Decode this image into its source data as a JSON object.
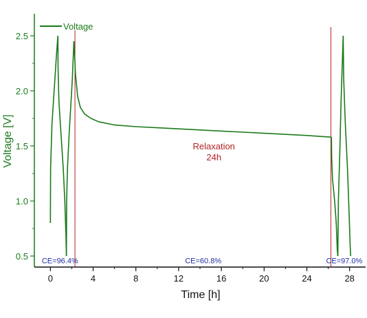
{
  "chart_data": {
    "type": "line",
    "xlabel": "Time [h]",
    "ylabel": "Voltage [V]",
    "xlim": [
      -1.5,
      29.5
    ],
    "ylim": [
      0.4,
      2.7
    ],
    "x_ticks": [
      0,
      4,
      8,
      12,
      16,
      20,
      24,
      28
    ],
    "y_ticks": [
      0.5,
      1.0,
      1.5,
      2.0,
      2.5
    ],
    "x_tick_labels": [
      "0",
      "4",
      "8",
      "12",
      "16",
      "20",
      "24",
      "28"
    ],
    "y_tick_labels": [
      "0.5",
      "1.0",
      "1.5",
      "2.0",
      "2.5"
    ],
    "legend": {
      "position": "top-left",
      "entries": [
        "Voltage"
      ]
    },
    "colors": {
      "series": "#1a7a1a",
      "axis_green": "#1a7a1a",
      "marker_red": "#b22222",
      "ce_blue": "#1f2fa0",
      "annotation_red": "#b22222"
    },
    "series": [
      {
        "name": "Voltage",
        "segments": [
          [
            [
              0,
              0.8
            ],
            [
              0.02,
              1.3
            ],
            [
              0.15,
              1.7
            ],
            [
              0.35,
              2.0
            ],
            [
              0.55,
              2.3
            ],
            [
              0.7,
              2.5
            ]
          ],
          [
            [
              0.7,
              2.5
            ],
            [
              0.72,
              2.2
            ],
            [
              0.8,
              1.9
            ],
            [
              1.0,
              1.6
            ],
            [
              1.2,
              1.3
            ],
            [
              1.35,
              1.0
            ],
            [
              1.45,
              0.7
            ],
            [
              1.5,
              0.5
            ]
          ],
          [
            [
              1.5,
              0.5
            ],
            [
              1.52,
              1.0
            ],
            [
              1.6,
              1.3
            ],
            [
              1.75,
              1.6
            ],
            [
              1.9,
              1.85
            ],
            [
              2.05,
              2.1
            ],
            [
              2.2,
              2.45
            ]
          ],
          [
            [
              2.2,
              2.45
            ],
            [
              2.35,
              2.15
            ],
            [
              2.55,
              1.95
            ],
            [
              2.8,
              1.85
            ],
            [
              3.2,
              1.79
            ],
            [
              3.8,
              1.75
            ],
            [
              4.5,
              1.72
            ],
            [
              6,
              1.69
            ],
            [
              8,
              1.675
            ],
            [
              10,
              1.665
            ],
            [
              12,
              1.655
            ],
            [
              14,
              1.645
            ],
            [
              16,
              1.635
            ],
            [
              18,
              1.625
            ],
            [
              20,
              1.615
            ],
            [
              22,
              1.605
            ],
            [
              24,
              1.595
            ],
            [
              25.5,
              1.585
            ],
            [
              26.3,
              1.58
            ]
          ],
          [
            [
              26.3,
              1.58
            ],
            [
              26.32,
              1.4
            ],
            [
              26.4,
              1.2
            ],
            [
              26.6,
              1.0
            ],
            [
              26.75,
              0.8
            ],
            [
              26.85,
              0.55
            ],
            [
              26.9,
              0.5
            ]
          ],
          [
            [
              26.9,
              0.5
            ],
            [
              26.95,
              1.0
            ],
            [
              27.1,
              1.5
            ],
            [
              27.2,
              1.9
            ],
            [
              27.3,
              2.2
            ],
            [
              27.4,
              2.5
            ]
          ],
          [
            [
              27.4,
              2.5
            ],
            [
              27.45,
              2.1
            ],
            [
              27.6,
              1.7
            ],
            [
              27.8,
              1.3
            ],
            [
              27.95,
              0.9
            ],
            [
              28.05,
              0.6
            ],
            [
              28.1,
              0.5
            ]
          ]
        ]
      }
    ],
    "vertical_markers": [
      {
        "x": 2.3,
        "y_from": 0.4,
        "y_to": 2.55
      },
      {
        "x": 26.25,
        "y_from": 0.4,
        "y_to": 2.58
      }
    ],
    "annotations": [
      {
        "lines": [
          "Relaxation",
          "24h"
        ],
        "x": 15.3,
        "y": 1.47
      },
      {
        "text": "CE=96.4%",
        "x": 0.9,
        "y": 0.46
      },
      {
        "text": "CE=60.8%",
        "x": 14.3,
        "y": 0.46
      },
      {
        "text": "CE=97.0%",
        "x": 27.5,
        "y": 0.46
      }
    ]
  }
}
